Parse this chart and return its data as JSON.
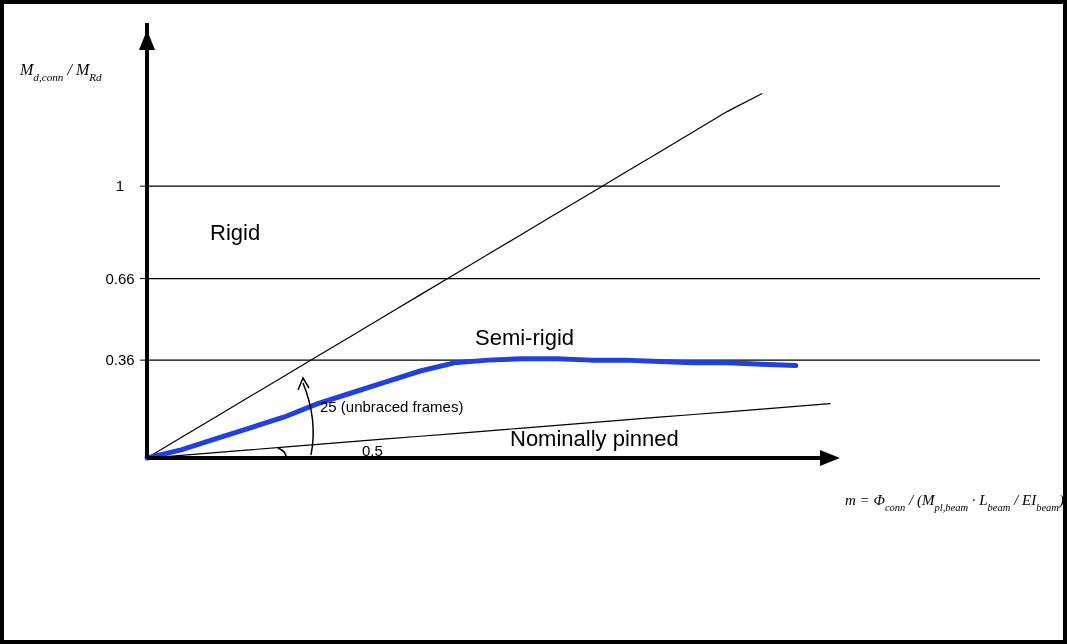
{
  "chart_data": {
    "type": "line",
    "ylabel": "M$_{d,conn}$ / M$_{Rd}$",
    "xlabel": "m = Φ$_{conn}$ / (M$_{pl,beam}$ · L$_{beam}$ / EI$_{beam}$)",
    "categories": [
      null,
      null,
      null,
      null,
      null,
      null,
      null,
      null,
      null,
      null,
      null,
      null,
      null,
      null,
      null,
      null,
      null,
      null,
      null,
      null,
      null
    ],
    "ylim": [
      0,
      1.6
    ],
    "yticks": [
      0.36,
      0.66,
      1
    ],
    "tick_labels": "y",
    "grid": false,
    "ref_lines": [
      {
        "axis": "y",
        "value": 1,
        "color": "#000000"
      },
      {
        "axis": "y",
        "value": 0.66,
        "color": "#000000"
      },
      {
        "axis": "y",
        "value": 0.36,
        "color": "#000000"
      }
    ],
    "series": [
      {
        "color": "#000000",
        "values": [
          0,
          0.075,
          0.15,
          0.225,
          0.3,
          0.375,
          0.45,
          0.525,
          0.6,
          0.675,
          0.75,
          0.825,
          0.9,
          0.975,
          1.05,
          1.125,
          1.2,
          1.275,
          1.34,
          null,
          null
        ]
      },
      {
        "color": "#000000",
        "values": [
          0,
          0.01,
          0.02,
          0.03,
          0.04,
          0.05,
          0.06,
          0.07,
          0.08,
          0.09,
          0.1,
          0.11,
          0.12,
          0.13,
          0.14,
          0.15,
          0.16,
          0.17,
          0.18,
          0.19,
          0.2
        ]
      },
      {
        "color": "#2040e0",
        "values": [
          0,
          0.03,
          0.07,
          0.11,
          0.15,
          0.2,
          0.24,
          0.28,
          0.32,
          0.35,
          0.36,
          0.365,
          0.365,
          0.36,
          0.36,
          0.355,
          0.35,
          0.35,
          0.345,
          0.34,
          null
        ]
      }
    ],
    "annotations": [
      "Rigid",
      "Semi-rigid",
      "25 (unbraced frames)",
      "0.5",
      "Nominally pinned"
    ]
  }
}
